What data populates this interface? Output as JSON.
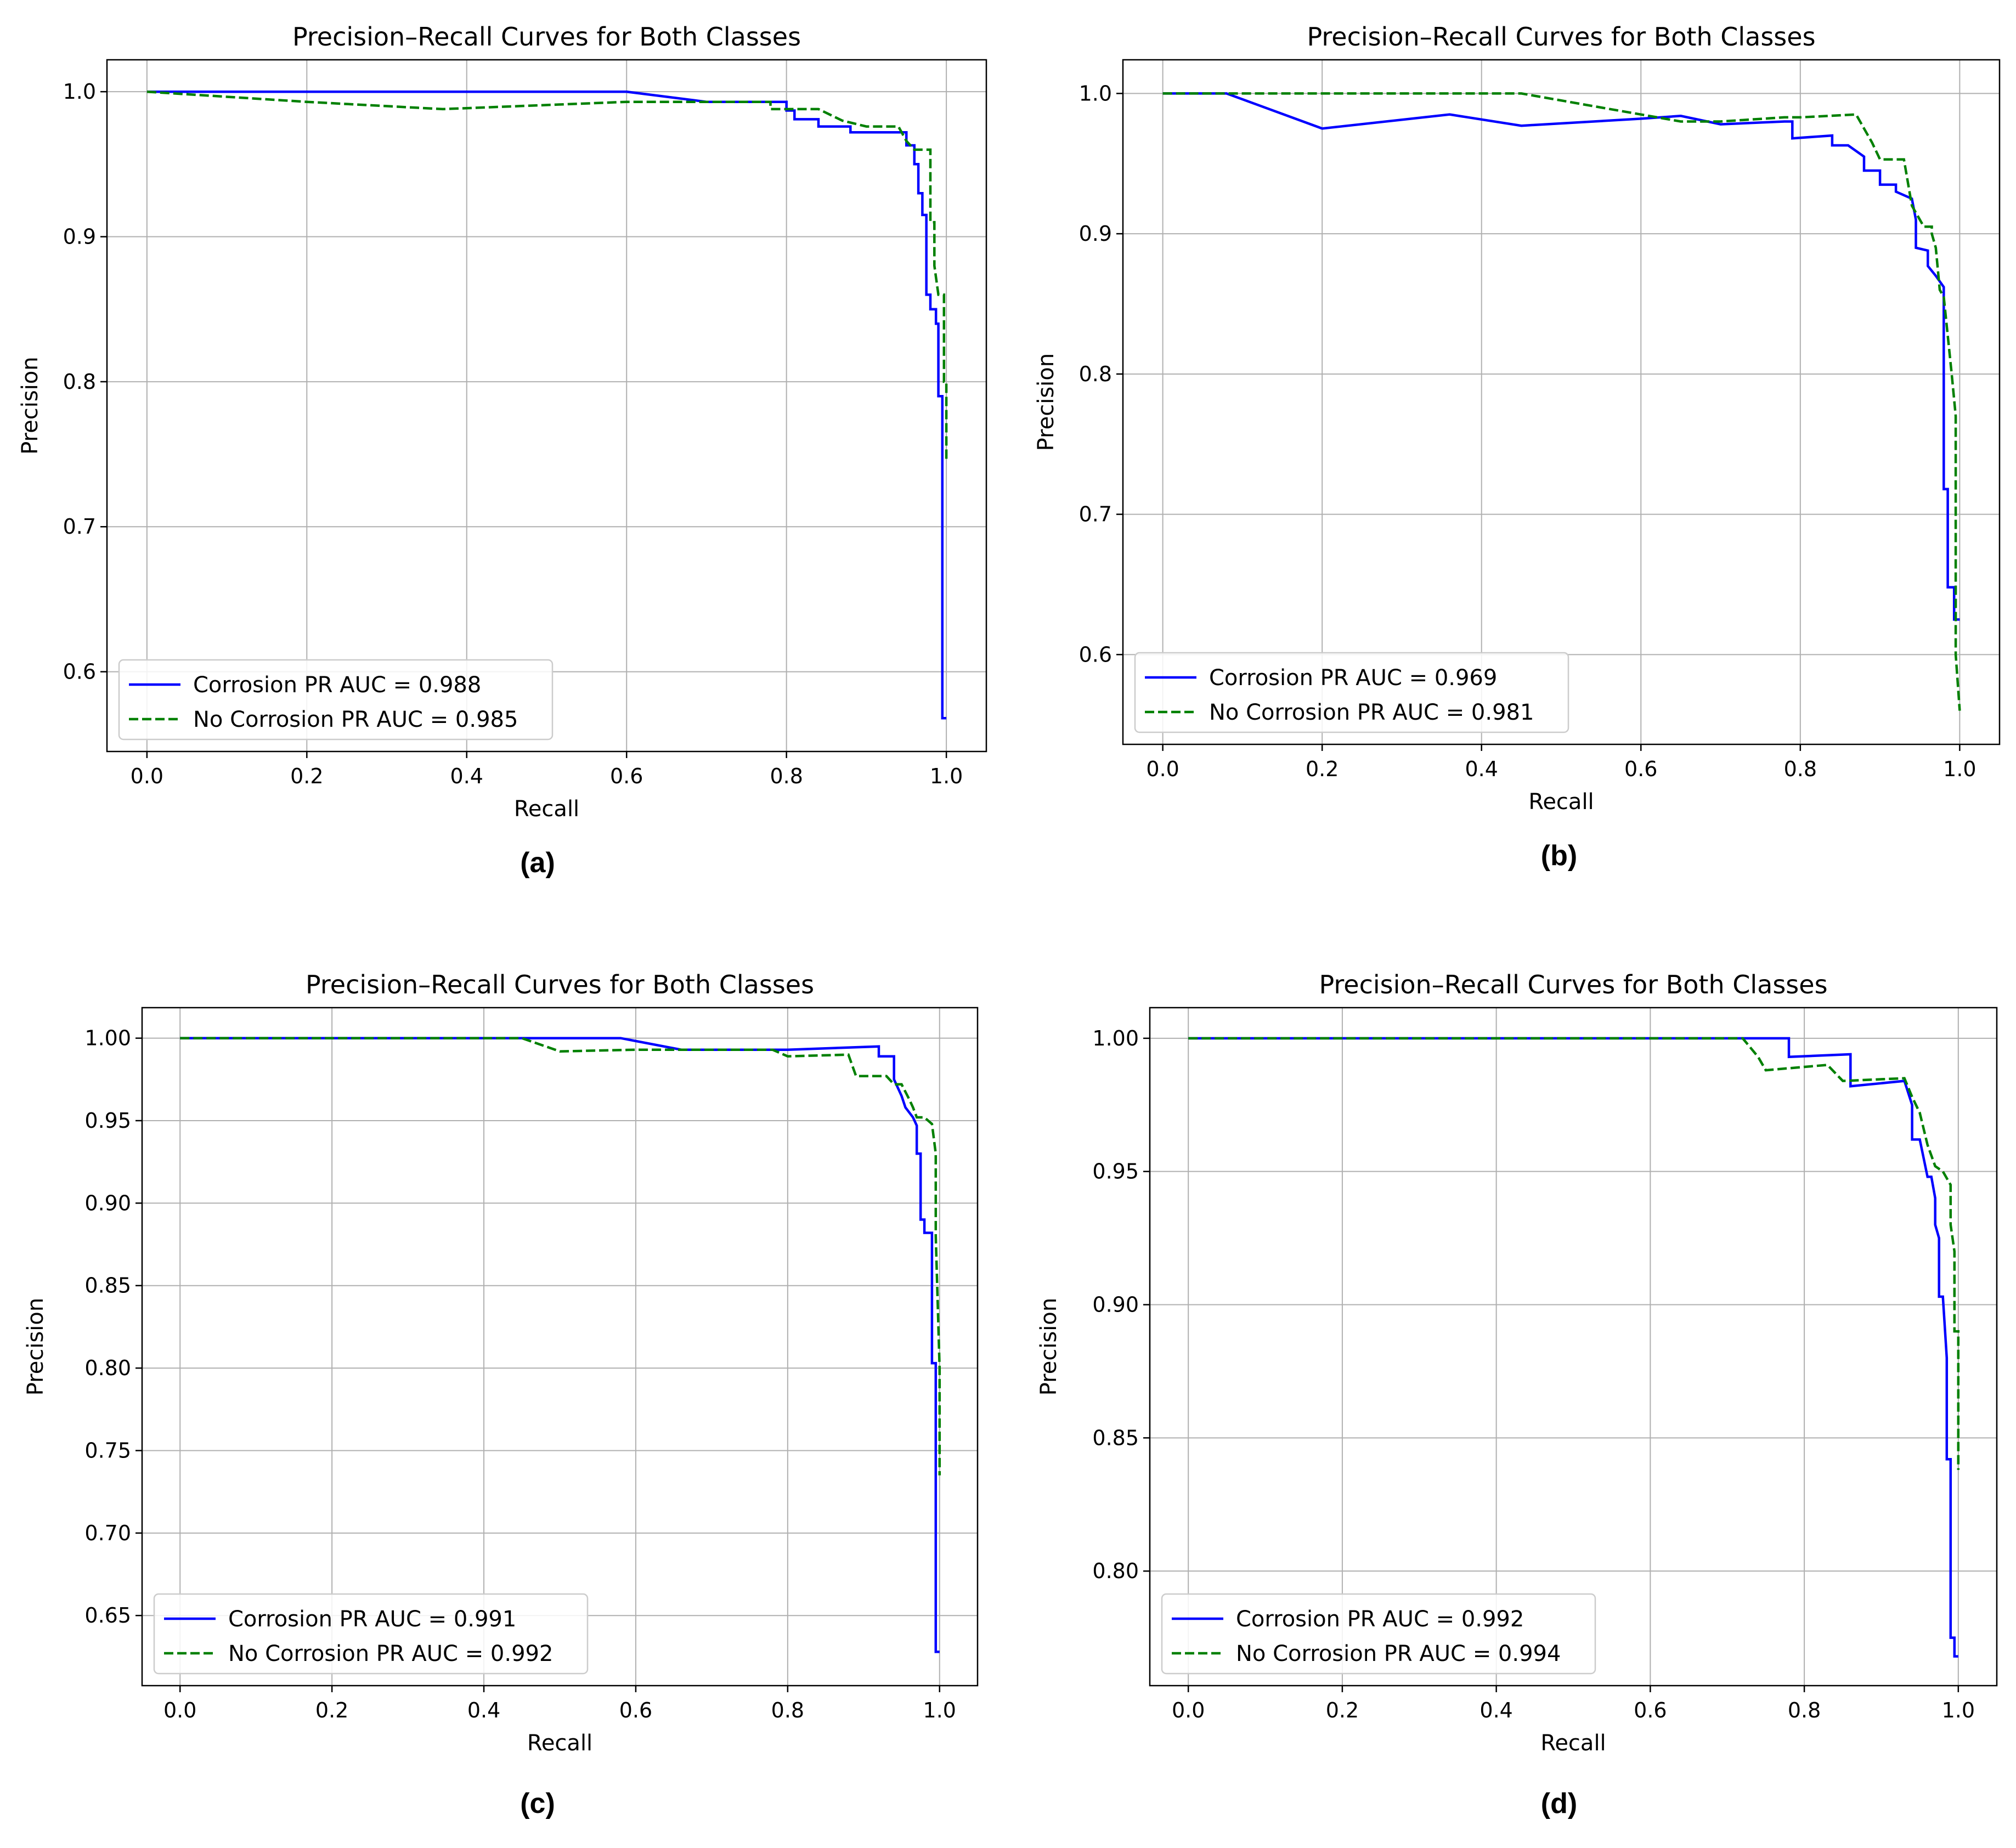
{
  "colors": {
    "corrosion": "#0000ff",
    "no_corrosion": "#008000",
    "grid": "#b0b0b0",
    "axis": "#000000"
  },
  "chart_data": [
    {
      "panel_label": "(a)",
      "type": "line",
      "title": "Precision–Recall Curves for Both Classes",
      "xlabel": "Recall",
      "ylabel": "Precision",
      "xlim": [
        -0.05,
        1.05
      ],
      "ylim": [
        0.545,
        1.022
      ],
      "xticks": [
        0.0,
        0.2,
        0.4,
        0.6,
        0.8,
        1.0
      ],
      "xtick_labels": [
        "0.0",
        "0.2",
        "0.4",
        "0.6",
        "0.8",
        "1.0"
      ],
      "yticks": [
        0.6,
        0.7,
        0.8,
        0.9,
        1.0
      ],
      "ytick_labels": [
        "0.6",
        "0.7",
        "0.8",
        "0.9",
        "1.0"
      ],
      "grid": true,
      "legend_position": "lower-left",
      "series": [
        {
          "name": "Corrosion PR AUC = 0.988",
          "style": "solid",
          "color": "#0000ff",
          "points": [
            [
              0,
              1.0
            ],
            [
              0.6,
              1.0
            ],
            [
              0.7,
              0.993
            ],
            [
              0.8,
              0.993
            ],
            [
              0.8,
              0.987
            ],
            [
              0.81,
              0.987
            ],
            [
              0.81,
              0.981
            ],
            [
              0.84,
              0.981
            ],
            [
              0.84,
              0.976
            ],
            [
              0.88,
              0.976
            ],
            [
              0.88,
              0.972
            ],
            [
              0.95,
              0.972
            ],
            [
              0.95,
              0.963
            ],
            [
              0.96,
              0.963
            ],
            [
              0.96,
              0.95
            ],
            [
              0.965,
              0.95
            ],
            [
              0.965,
              0.93
            ],
            [
              0.97,
              0.93
            ],
            [
              0.97,
              0.915
            ],
            [
              0.975,
              0.915
            ],
            [
              0.975,
              0.86
            ],
            [
              0.98,
              0.86
            ],
            [
              0.98,
              0.85
            ],
            [
              0.987,
              0.85
            ],
            [
              0.987,
              0.84
            ],
            [
              0.99,
              0.84
            ],
            [
              0.99,
              0.79
            ],
            [
              0.995,
              0.79
            ],
            [
              0.995,
              0.568
            ],
            [
              1.0,
              0.568
            ]
          ]
        },
        {
          "name": "No Corrosion PR AUC = 0.985",
          "style": "dashed",
          "color": "#008000",
          "points": [
            [
              0,
              1.0
            ],
            [
              0.2,
              0.993
            ],
            [
              0.37,
              0.988
            ],
            [
              0.6,
              0.993
            ],
            [
              0.7,
              0.993
            ],
            [
              0.78,
              0.993
            ],
            [
              0.78,
              0.988
            ],
            [
              0.82,
              0.988
            ],
            [
              0.84,
              0.988
            ],
            [
              0.87,
              0.98
            ],
            [
              0.9,
              0.976
            ],
            [
              0.94,
              0.976
            ],
            [
              0.95,
              0.966
            ],
            [
              0.96,
              0.96
            ],
            [
              0.98,
              0.96
            ],
            [
              0.98,
              0.91
            ],
            [
              0.985,
              0.91
            ],
            [
              0.985,
              0.88
            ],
            [
              0.99,
              0.86
            ],
            [
              0.997,
              0.86
            ],
            [
              0.997,
              0.8
            ],
            [
              1.0,
              0.8
            ],
            [
              1.0,
              0.745
            ]
          ]
        }
      ]
    },
    {
      "panel_label": "(b)",
      "type": "line",
      "title": "Precision–Recall Curves for Both Classes",
      "xlabel": "Recall",
      "ylabel": "Precision",
      "xlim": [
        -0.05,
        1.05
      ],
      "ylim": [
        0.536,
        1.024
      ],
      "xticks": [
        0.0,
        0.2,
        0.4,
        0.6,
        0.8,
        1.0
      ],
      "xtick_labels": [
        "0.0",
        "0.2",
        "0.4",
        "0.6",
        "0.8",
        "1.0"
      ],
      "yticks": [
        0.6,
        0.7,
        0.8,
        0.9,
        1.0
      ],
      "ytick_labels": [
        "0.6",
        "0.7",
        "0.8",
        "0.9",
        "1.0"
      ],
      "grid": true,
      "legend_position": "lower-left",
      "series": [
        {
          "name": "Corrosion PR AUC = 0.969",
          "style": "solid",
          "color": "#0000ff",
          "points": [
            [
              0,
              1.0
            ],
            [
              0.08,
              1.0
            ],
            [
              0.2,
              0.975
            ],
            [
              0.36,
              0.985
            ],
            [
              0.45,
              0.977
            ],
            [
              0.6,
              0.982
            ],
            [
              0.65,
              0.984
            ],
            [
              0.7,
              0.978
            ],
            [
              0.78,
              0.98
            ],
            [
              0.79,
              0.98
            ],
            [
              0.79,
              0.968
            ],
            [
              0.84,
              0.97
            ],
            [
              0.84,
              0.963
            ],
            [
              0.86,
              0.963
            ],
            [
              0.88,
              0.955
            ],
            [
              0.88,
              0.945
            ],
            [
              0.9,
              0.945
            ],
            [
              0.9,
              0.935
            ],
            [
              0.92,
              0.935
            ],
            [
              0.92,
              0.93
            ],
            [
              0.94,
              0.925
            ],
            [
              0.945,
              0.91
            ],
            [
              0.945,
              0.89
            ],
            [
              0.96,
              0.888
            ],
            [
              0.96,
              0.877
            ],
            [
              0.97,
              0.87
            ],
            [
              0.98,
              0.862
            ],
            [
              0.98,
              0.718
            ],
            [
              0.985,
              0.718
            ],
            [
              0.985,
              0.648
            ],
            [
              0.993,
              0.648
            ],
            [
              0.993,
              0.625
            ],
            [
              1.0,
              0.625
            ]
          ]
        },
        {
          "name": "No Corrosion PR AUC = 0.981",
          "style": "dashed",
          "color": "#008000",
          "points": [
            [
              0,
              1.0
            ],
            [
              0.08,
              1.0
            ],
            [
              0.45,
              1.0
            ],
            [
              0.55,
              0.99
            ],
            [
              0.6,
              0.985
            ],
            [
              0.65,
              0.98
            ],
            [
              0.7,
              0.98
            ],
            [
              0.78,
              0.983
            ],
            [
              0.8,
              0.983
            ],
            [
              0.87,
              0.985
            ],
            [
              0.88,
              0.975
            ],
            [
              0.89,
              0.965
            ],
            [
              0.9,
              0.953
            ],
            [
              0.93,
              0.953
            ],
            [
              0.94,
              0.92
            ],
            [
              0.95,
              0.91
            ],
            [
              0.955,
              0.905
            ],
            [
              0.965,
              0.905
            ],
            [
              0.965,
              0.9
            ],
            [
              0.97,
              0.89
            ],
            [
              0.975,
              0.86
            ],
            [
              0.98,
              0.855
            ],
            [
              0.99,
              0.8
            ],
            [
              0.995,
              0.77
            ],
            [
              0.995,
              0.6
            ],
            [
              1.0,
              0.56
            ]
          ]
        }
      ]
    },
    {
      "panel_label": "(c)",
      "type": "line",
      "title": "Precision–Recall Curves for Both Classes",
      "xlabel": "Recall",
      "ylabel": "Precision",
      "xlim": [
        -0.05,
        1.05
      ],
      "ylim": [
        0.6075,
        1.0185
      ],
      "xticks": [
        0.0,
        0.2,
        0.4,
        0.6,
        0.8,
        1.0
      ],
      "xtick_labels": [
        "0.0",
        "0.2",
        "0.4",
        "0.6",
        "0.8",
        "1.0"
      ],
      "yticks": [
        0.65,
        0.7,
        0.75,
        0.8,
        0.85,
        0.9,
        0.95,
        1.0
      ],
      "ytick_labels": [
        "0.65",
        "0.70",
        "0.75",
        "0.80",
        "0.85",
        "0.90",
        "0.95",
        "1.00"
      ],
      "grid": true,
      "legend_position": "lower-left",
      "series": [
        {
          "name": "Corrosion PR AUC = 0.991",
          "style": "solid",
          "color": "#0000ff",
          "points": [
            [
              0,
              1.0
            ],
            [
              0.58,
              1.0
            ],
            [
              0.66,
              0.993
            ],
            [
              0.8,
              0.993
            ],
            [
              0.92,
              0.995
            ],
            [
              0.92,
              0.989
            ],
            [
              0.94,
              0.989
            ],
            [
              0.94,
              0.975
            ],
            [
              0.95,
              0.965
            ],
            [
              0.955,
              0.958
            ],
            [
              0.965,
              0.952
            ],
            [
              0.97,
              0.947
            ],
            [
              0.97,
              0.93
            ],
            [
              0.975,
              0.93
            ],
            [
              0.975,
              0.89
            ],
            [
              0.98,
              0.89
            ],
            [
              0.98,
              0.882
            ],
            [
              0.99,
              0.882
            ],
            [
              0.99,
              0.803
            ],
            [
              0.995,
              0.803
            ],
            [
              0.995,
              0.628
            ],
            [
              1.0,
              0.628
            ]
          ]
        },
        {
          "name": "No Corrosion PR AUC = 0.992",
          "style": "dashed",
          "color": "#008000",
          "points": [
            [
              0,
              1.0
            ],
            [
              0.45,
              1.0
            ],
            [
              0.5,
              0.992
            ],
            [
              0.6,
              0.993
            ],
            [
              0.78,
              0.993
            ],
            [
              0.8,
              0.989
            ],
            [
              0.88,
              0.99
            ],
            [
              0.89,
              0.977
            ],
            [
              0.93,
              0.977
            ],
            [
              0.94,
              0.972
            ],
            [
              0.95,
              0.972
            ],
            [
              0.96,
              0.963
            ],
            [
              0.965,
              0.958
            ],
            [
              0.97,
              0.952
            ],
            [
              0.98,
              0.952
            ],
            [
              0.99,
              0.948
            ],
            [
              0.995,
              0.93
            ],
            [
              0.995,
              0.88
            ],
            [
              1.0,
              0.8
            ],
            [
              1.0,
              0.735
            ]
          ]
        }
      ]
    },
    {
      "panel_label": "(d)",
      "type": "line",
      "title": "Precision–Recall Curves for Both Classes",
      "xlabel": "Recall",
      "ylabel": "Precision",
      "xlim": [
        -0.05,
        1.05
      ],
      "ylim": [
        0.757,
        1.0115
      ],
      "xticks": [
        0.0,
        0.2,
        0.4,
        0.6,
        0.8,
        1.0
      ],
      "xtick_labels": [
        "0.0",
        "0.2",
        "0.4",
        "0.6",
        "0.8",
        "1.0"
      ],
      "yticks": [
        0.8,
        0.85,
        0.9,
        0.95,
        1.0
      ],
      "ytick_labels": [
        "0.80",
        "0.85",
        "0.90",
        "0.95",
        "1.00"
      ],
      "grid": true,
      "legend_position": "lower-left",
      "series": [
        {
          "name": "Corrosion PR AUC = 0.992",
          "style": "solid",
          "color": "#0000ff",
          "points": [
            [
              0,
              1.0
            ],
            [
              0.78,
              1.0
            ],
            [
              0.78,
              0.993
            ],
            [
              0.86,
              0.994
            ],
            [
              0.86,
              0.982
            ],
            [
              0.93,
              0.984
            ],
            [
              0.94,
              0.975
            ],
            [
              0.94,
              0.962
            ],
            [
              0.95,
              0.962
            ],
            [
              0.96,
              0.948
            ],
            [
              0.965,
              0.948
            ],
            [
              0.97,
              0.94
            ],
            [
              0.97,
              0.93
            ],
            [
              0.975,
              0.925
            ],
            [
              0.975,
              0.903
            ],
            [
              0.98,
              0.903
            ],
            [
              0.985,
              0.88
            ],
            [
              0.985,
              0.842
            ],
            [
              0.99,
              0.842
            ],
            [
              0.99,
              0.775
            ],
            [
              0.995,
              0.775
            ],
            [
              0.995,
              0.768
            ],
            [
              1.0,
              0.768
            ]
          ]
        },
        {
          "name": "No Corrosion PR AUC = 0.994",
          "style": "dashed",
          "color": "#008000",
          "points": [
            [
              0,
              1.0
            ],
            [
              0.72,
              1.0
            ],
            [
              0.74,
              0.993
            ],
            [
              0.75,
              0.988
            ],
            [
              0.83,
              0.99
            ],
            [
              0.85,
              0.984
            ],
            [
              0.93,
              0.985
            ],
            [
              0.94,
              0.978
            ],
            [
              0.95,
              0.972
            ],
            [
              0.96,
              0.96
            ],
            [
              0.97,
              0.952
            ],
            [
              0.98,
              0.95
            ],
            [
              0.99,
              0.945
            ],
            [
              0.99,
              0.93
            ],
            [
              0.995,
              0.92
            ],
            [
              0.995,
              0.89
            ],
            [
              1.0,
              0.89
            ],
            [
              1.0,
              0.838
            ]
          ]
        }
      ]
    }
  ]
}
